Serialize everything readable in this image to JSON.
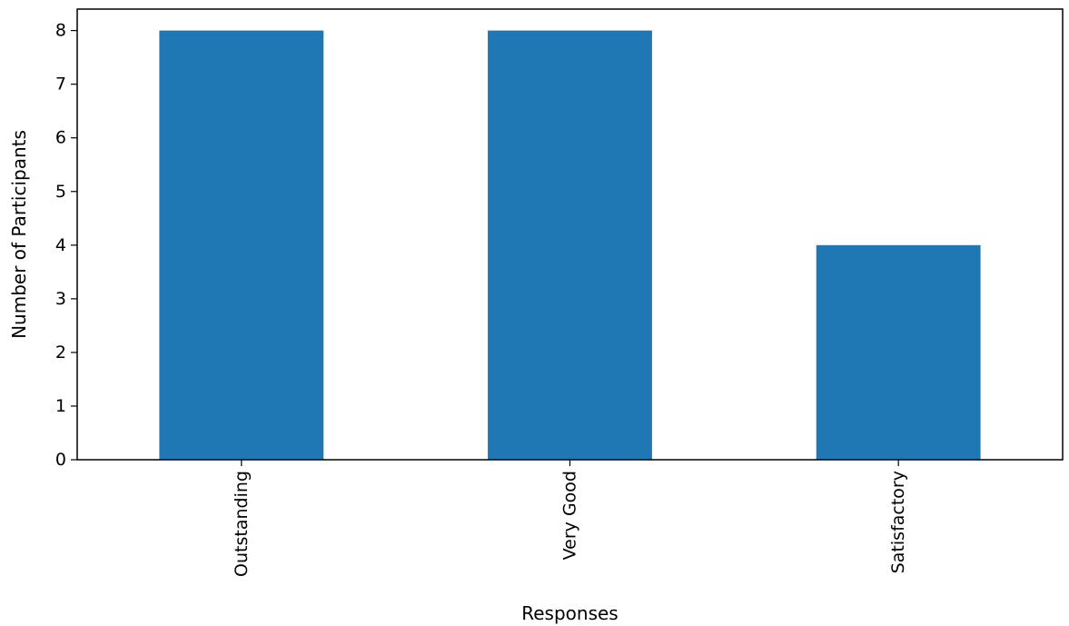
{
  "chart_data": {
    "type": "bar",
    "categories": [
      "Outstanding",
      "Very Good",
      "Satisfactory"
    ],
    "values": [
      8,
      8,
      4
    ],
    "title": "",
    "xlabel": "Responses",
    "ylabel": "Number of Participants",
    "ylim": [
      0,
      8.4
    ],
    "yticks": [
      "0",
      "1",
      "2",
      "3",
      "4",
      "5",
      "6",
      "7",
      "8"
    ],
    "grid": false,
    "legend": "none",
    "bar_color": "#1f77b4"
  }
}
